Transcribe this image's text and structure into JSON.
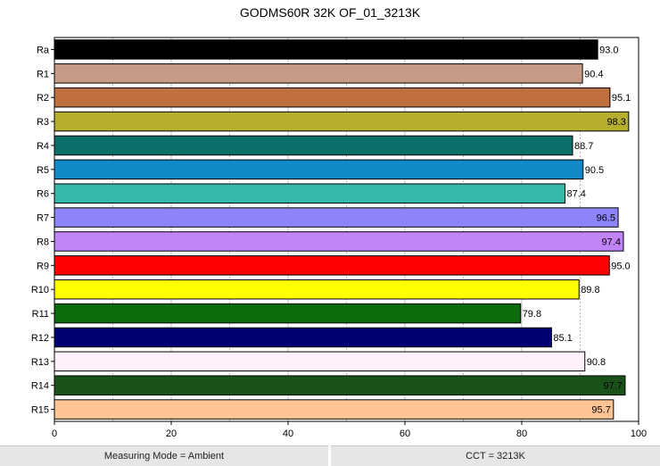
{
  "chart_data": {
    "type": "bar",
    "orientation": "horizontal",
    "title": "GODMS60R 32K OF_01_3213K",
    "categories": [
      "Ra",
      "R1",
      "R2",
      "R3",
      "R4",
      "R5",
      "R6",
      "R7",
      "R8",
      "R9",
      "R10",
      "R11",
      "R12",
      "R13",
      "R14",
      "R15"
    ],
    "values": [
      93.0,
      90.4,
      95.1,
      98.3,
      88.7,
      90.5,
      87.4,
      96.5,
      97.4,
      95.0,
      89.8,
      79.8,
      85.1,
      90.8,
      97.7,
      95.7
    ],
    "value_labels": [
      "93.0",
      "90.4",
      "95.1",
      "98.3",
      "88.7",
      "90.5",
      "87.4",
      "96.5",
      "97.4",
      "95.0",
      "89.8",
      "79.8",
      "85.1",
      "90.8",
      "97.7",
      "95.7"
    ],
    "colors": [
      "#000000",
      "#c89b88",
      "#c0703f",
      "#b5ae2e",
      "#0e6e6a",
      "#1289c9",
      "#36b7aa",
      "#8c84f8",
      "#c084f6",
      "#ff0000",
      "#ffff00",
      "#0c6b0c",
      "#000075",
      "#fff0fb",
      "#1a531a",
      "#ffc493"
    ],
    "xlim": [
      0,
      100
    ],
    "xticks": [
      0,
      20,
      40,
      60,
      80,
      100
    ],
    "grid": true
  },
  "status": {
    "left": "Measuring Mode = Ambient",
    "right": "CCT = 3213K"
  }
}
